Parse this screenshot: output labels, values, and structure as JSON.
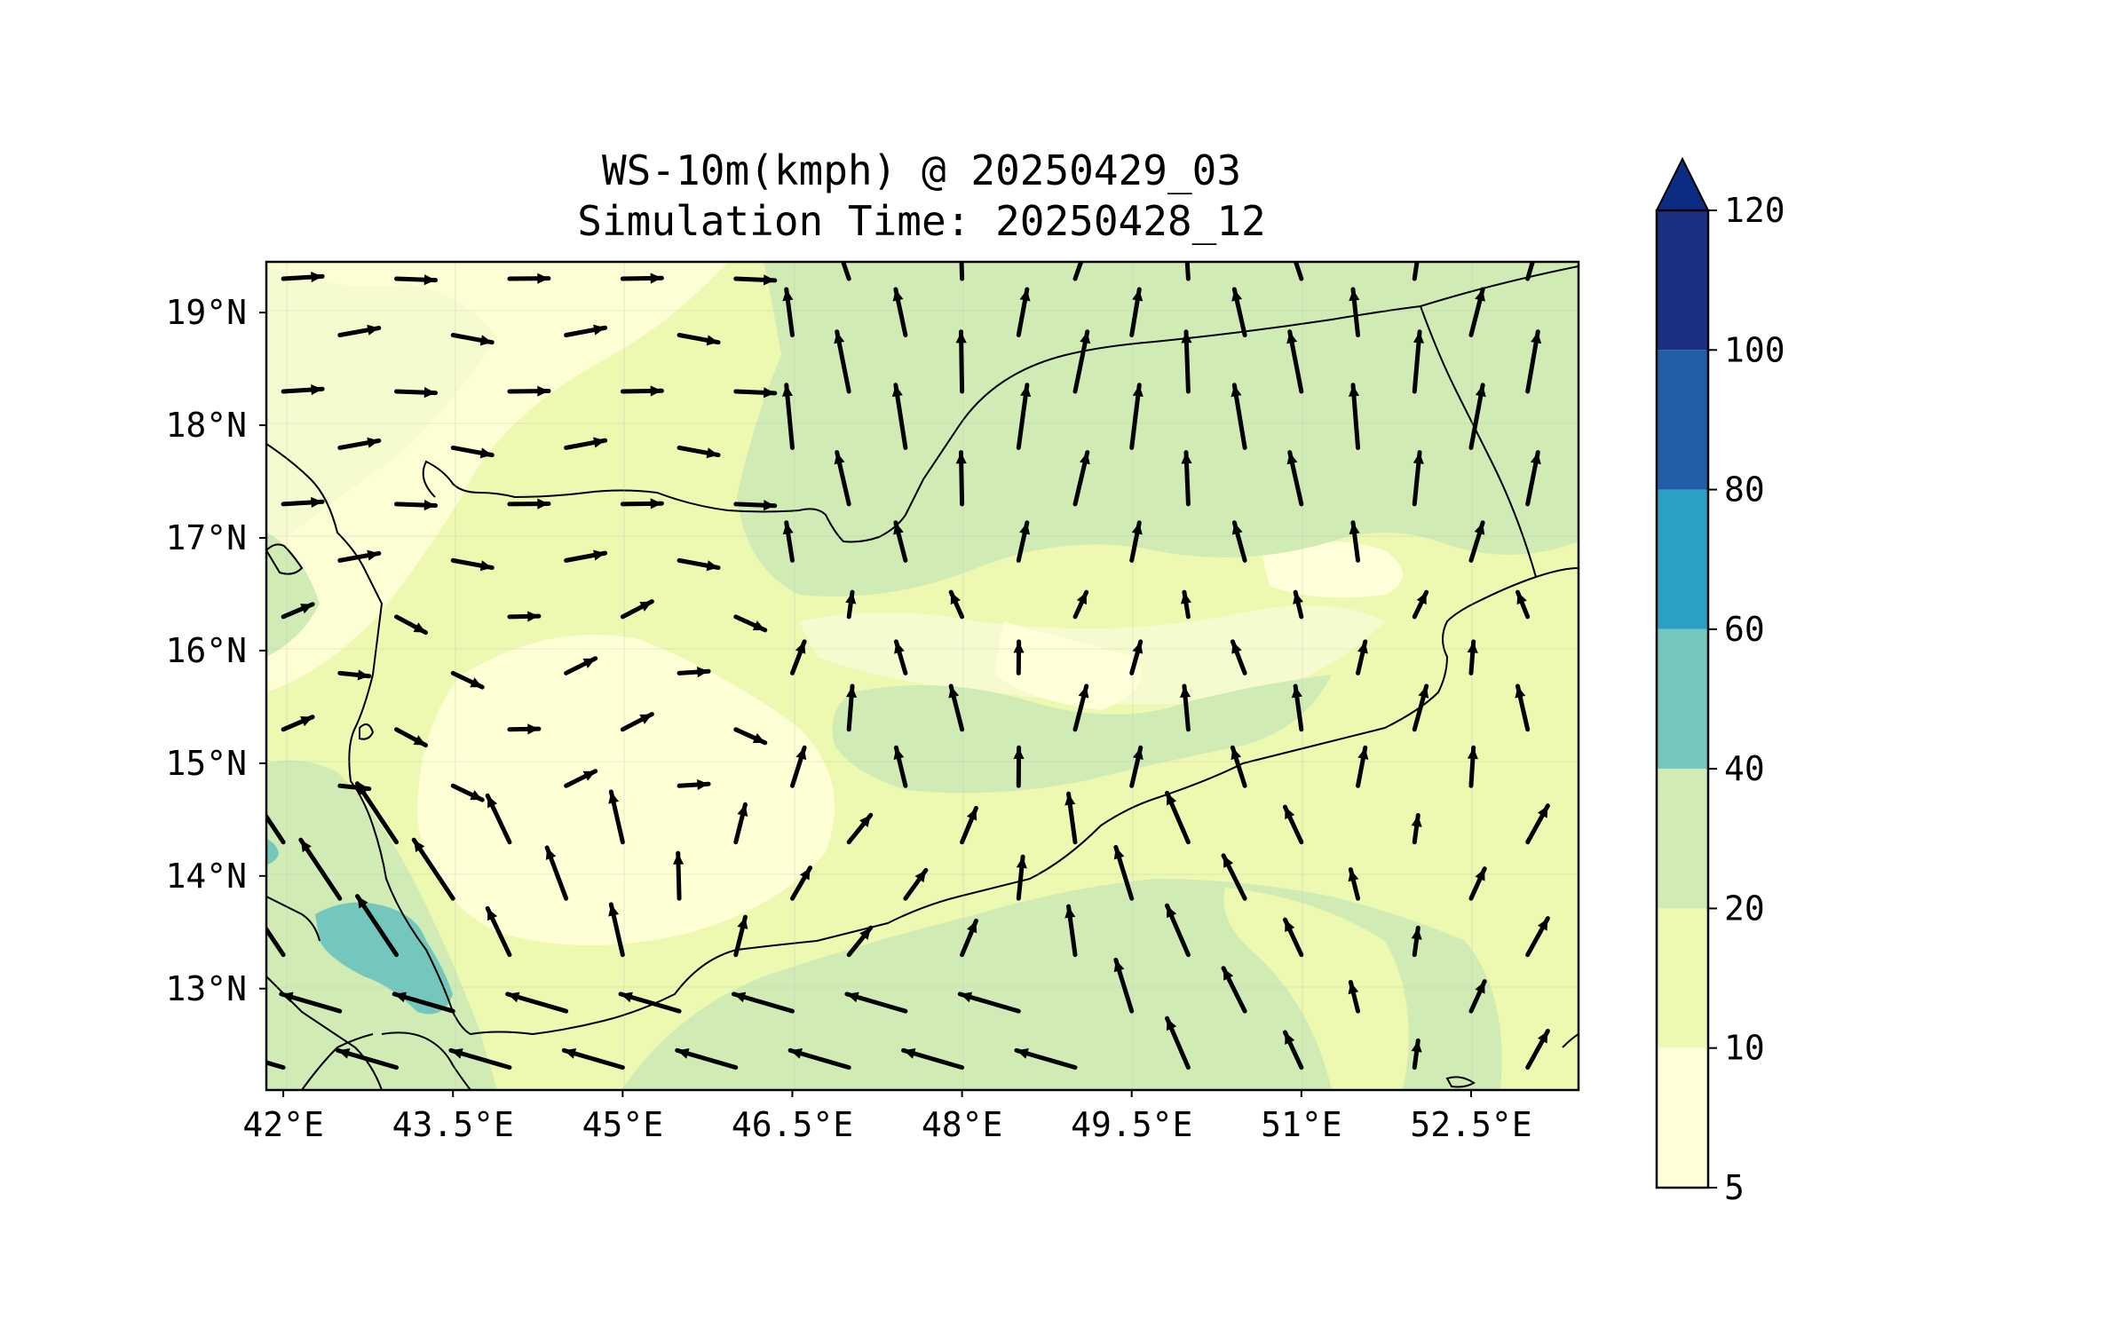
{
  "title": {
    "line1": "WS-10m(kmph) @ 20250429_03",
    "line2": "Simulation Time: 20250428_12"
  },
  "map": {
    "x_ticks": [
      "42°E",
      "43.5°E",
      "45°E",
      "46.5°E",
      "48°E",
      "49.5°E",
      "51°E",
      "52.5°E"
    ],
    "x_tick_values": [
      42,
      43.5,
      45,
      46.5,
      48,
      49.5,
      51,
      52.5
    ],
    "y_ticks": [
      "19°N",
      "18°N",
      "17°N",
      "16°N",
      "15°N",
      "14°N",
      "13°N"
    ],
    "y_tick_values": [
      19,
      18,
      17,
      16,
      15,
      14,
      13
    ],
    "lon_range": [
      41.85,
      53.45
    ],
    "lat_range": [
      12.1,
      19.45
    ],
    "colors": {
      "land_base": "#f0f9bf",
      "band_5_10": "#ffffd9",
      "band_10_20": "#edf8b1",
      "band_20_40": "#d0ecb4",
      "band_40_60": "#73c7bd",
      "coast": "#000000",
      "vector": "#000000"
    }
  },
  "colorbar": {
    "labels": [
      "120",
      "100",
      "80",
      "60",
      "40",
      "20",
      "10",
      "5"
    ],
    "levels": [
      120,
      100,
      80,
      60,
      40,
      20,
      10,
      5
    ],
    "colors": [
      "#0c2c84",
      "#1d2f80",
      "#225ea8",
      "#2c9fc5",
      "#73c7bd",
      "#d0ecb4",
      "#edf8b1",
      "#ffffd9"
    ],
    "extend": "max"
  }
}
